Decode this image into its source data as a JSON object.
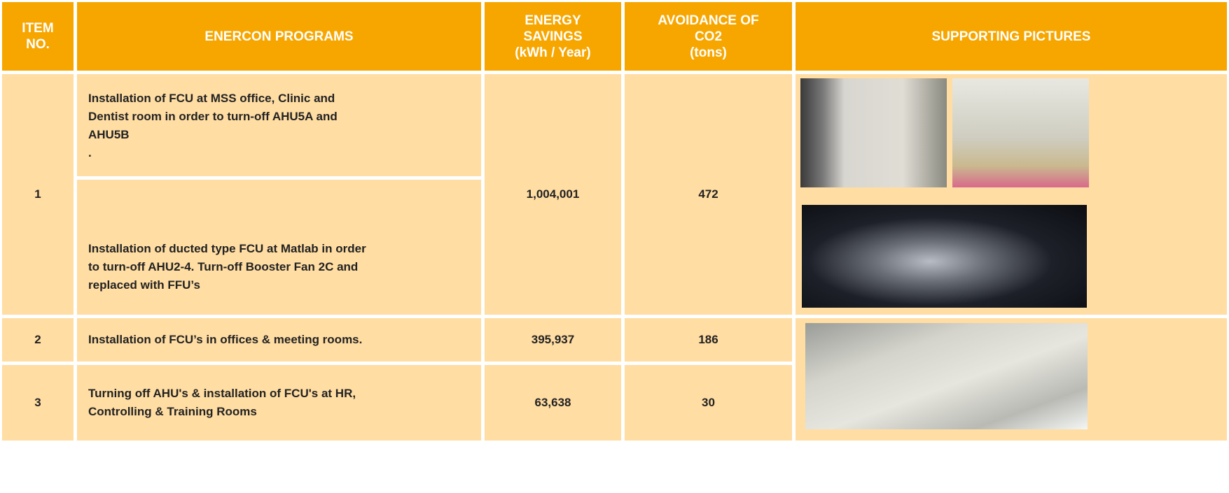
{
  "header": {
    "columns": [
      [
        "ITEM",
        "NO."
      ],
      [
        "ENERCON PROGRAMS"
      ],
      [
        "ENERGY",
        "SAVINGS",
        "(kWh / Year)"
      ],
      [
        "AVOIDANCE OF",
        "CO2",
        "(tons)"
      ],
      [
        "SUPPORTING PICTURES"
      ]
    ]
  },
  "table": {
    "rows": [
      {
        "item": "1",
        "programs": [
          [
            "Installation of FCU at MSS office, Clinic and",
            "Dentist room in order to turn-off AHU5A and",
            "AHU5B",
            "."
          ],
          [
            "Installation of ducted type FCU at Matlab in order",
            "to turn-off AHU2-4. Turn-off Booster Fan 2C and",
            "replaced with FFU’s"
          ]
        ],
        "energy": "1,004,001",
        "co2": "472"
      },
      {
        "item": "2",
        "programs": [
          [
            "Installation of FCU’s in offices & meeting rooms."
          ]
        ],
        "energy": "395,937",
        "co2": "186"
      },
      {
        "item": "3",
        "programs": [
          [
            "Turning off AHU's & installation of FCU's at HR,",
            "Controlling & Training Rooms"
          ]
        ],
        "energy": "63,638",
        "co2": "30"
      }
    ]
  }
}
